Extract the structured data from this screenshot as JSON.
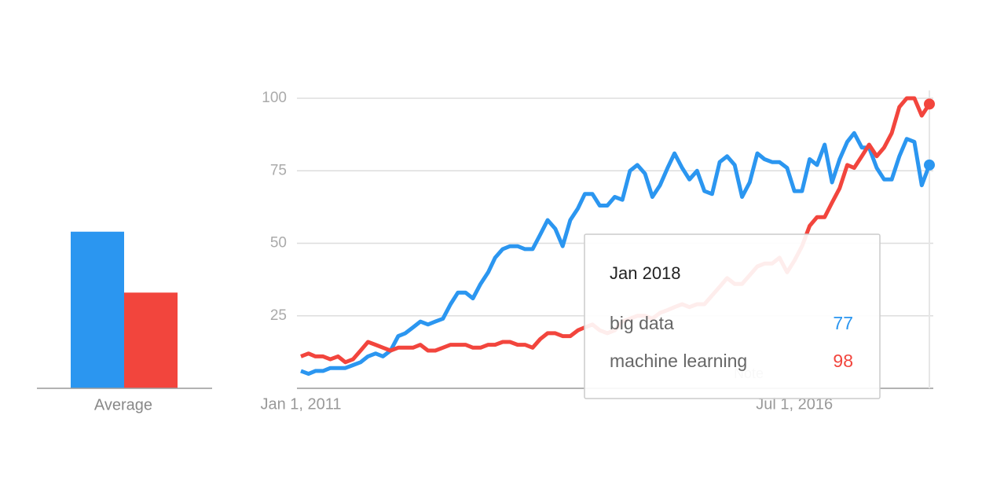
{
  "chart_data": [
    {
      "type": "bar",
      "categories": [
        "Average"
      ],
      "ylim": [
        0,
        100
      ],
      "series": [
        {
          "color": "#2b96f0",
          "values": [
            54
          ]
        },
        {
          "color": "#f2453d",
          "values": [
            33
          ]
        }
      ]
    },
    {
      "type": "line",
      "x": [
        "2011-01-01",
        "2011-02-01",
        "2011-03-01",
        "2011-04-01",
        "2011-05-01",
        "2011-06-01",
        "2011-07-01",
        "2011-08-01",
        "2011-09-01",
        "2011-10-01",
        "2011-11-01",
        "2011-12-01",
        "2012-01-01",
        "2012-02-01",
        "2012-03-01",
        "2012-04-01",
        "2012-05-01",
        "2012-06-01",
        "2012-07-01",
        "2012-08-01",
        "2012-09-01",
        "2012-10-01",
        "2012-11-01",
        "2012-12-01",
        "2013-01-01",
        "2013-02-01",
        "2013-03-01",
        "2013-04-01",
        "2013-05-01",
        "2013-06-01",
        "2013-07-01",
        "2013-08-01",
        "2013-09-01",
        "2013-10-01",
        "2013-11-01",
        "2013-12-01",
        "2014-01-01",
        "2014-02-01",
        "2014-03-01",
        "2014-04-01",
        "2014-05-01",
        "2014-06-01",
        "2014-07-01",
        "2014-08-01",
        "2014-09-01",
        "2014-10-01",
        "2014-11-01",
        "2014-12-01",
        "2015-01-01",
        "2015-02-01",
        "2015-03-01",
        "2015-04-01",
        "2015-05-01",
        "2015-06-01",
        "2015-07-01",
        "2015-08-01",
        "2015-09-01",
        "2015-10-01",
        "2015-11-01",
        "2015-12-01",
        "2016-01-01",
        "2016-02-01",
        "2016-03-01",
        "2016-04-01",
        "2016-05-01",
        "2016-06-01",
        "2016-07-01",
        "2016-08-01",
        "2016-09-01",
        "2016-10-01",
        "2016-11-01",
        "2016-12-01",
        "2017-01-01",
        "2017-02-01",
        "2017-03-01",
        "2017-04-01",
        "2017-05-01",
        "2017-06-01",
        "2017-07-01",
        "2017-08-01",
        "2017-09-01",
        "2017-10-01",
        "2017-11-01",
        "2017-12-01",
        "2018-01-01"
      ],
      "series": [
        {
          "name": "big data",
          "color": "#2b96f0",
          "values": [
            6,
            5,
            6,
            6,
            7,
            7,
            7,
            8,
            9,
            11,
            12,
            11,
            13,
            18,
            19,
            21,
            23,
            22,
            23,
            24,
            29,
            33,
            33,
            31,
            36,
            40,
            45,
            48,
            49,
            49,
            48,
            48,
            53,
            58,
            55,
            49,
            58,
            62,
            67,
            67,
            63,
            63,
            66,
            65,
            75,
            77,
            74,
            66,
            70,
            76,
            81,
            76,
            72,
            75,
            68,
            67,
            78,
            80,
            77,
            66,
            71,
            81,
            79,
            78,
            78,
            76,
            68,
            68,
            79,
            77,
            84,
            71,
            79,
            85,
            88,
            83,
            83,
            76,
            72,
            72,
            80,
            86,
            85,
            70,
            77
          ]
        },
        {
          "name": "machine learning",
          "color": "#f2453d",
          "values": [
            11,
            12,
            11,
            11,
            10,
            11,
            9,
            10,
            13,
            16,
            15,
            14,
            13,
            14,
            14,
            14,
            15,
            13,
            13,
            14,
            15,
            15,
            15,
            14,
            14,
            15,
            15,
            16,
            16,
            15,
            15,
            14,
            17,
            19,
            19,
            18,
            18,
            20,
            21,
            22,
            20,
            19,
            20,
            23,
            24,
            25,
            25,
            24,
            26,
            27,
            28,
            29,
            28,
            29,
            29,
            32,
            35,
            38,
            36,
            36,
            39,
            42,
            43,
            43,
            45,
            40,
            44,
            49,
            56,
            59,
            59,
            64,
            69,
            77,
            76,
            80,
            84,
            80,
            83,
            88,
            97,
            100,
            100,
            94,
            98
          ]
        }
      ],
      "xlim": [
        "2011-01-01",
        "2018-01-01"
      ],
      "xticks": [
        {
          "value": "2011-01-01",
          "label": "Jan 1, 2011"
        },
        {
          "value": "2016-07-01",
          "label": "Jul 1, 2016"
        }
      ],
      "ylim": [
        0,
        100
      ],
      "yticks": [
        25,
        50,
        75,
        100
      ],
      "grid": true,
      "annotation": "Note",
      "tooltip": {
        "title": "Jan 2018",
        "index": 84
      }
    }
  ]
}
